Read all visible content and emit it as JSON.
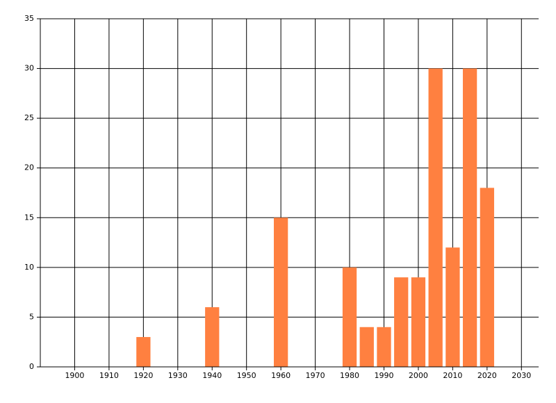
{
  "chart_data": {
    "type": "bar",
    "x": [
      1920,
      1940,
      1960,
      1980,
      1985,
      1990,
      1995,
      2000,
      2005,
      2010,
      2015,
      2020
    ],
    "values": [
      3,
      6,
      15,
      10,
      4,
      4,
      9,
      9,
      30,
      12,
      30,
      18
    ],
    "color": "#ff8040",
    "xlim": [
      1890,
      2035
    ],
    "xticks": [
      1900,
      1910,
      1920,
      1930,
      1940,
      1950,
      1960,
      1970,
      1980,
      1990,
      2000,
      2010,
      2020,
      2030
    ],
    "ylim": [
      0,
      35
    ],
    "yticks": [
      0,
      5,
      10,
      15,
      20,
      25,
      30,
      35
    ],
    "grid": true
  }
}
